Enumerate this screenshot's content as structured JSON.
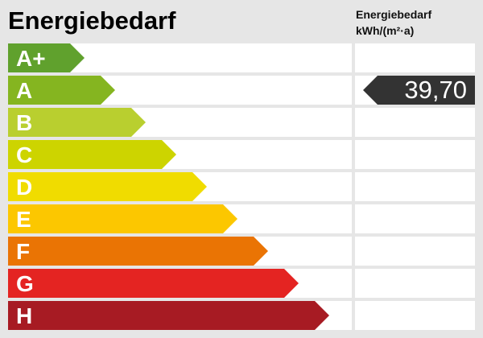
{
  "chart_data": {
    "type": "bar",
    "title": "Energiebedarf",
    "unit_label": [
      "Energiebedarf",
      "kWh/(m²·a)"
    ],
    "categories": [
      "A+",
      "A",
      "B",
      "C",
      "D",
      "E",
      "F",
      "G",
      "H"
    ],
    "colors": [
      "#60a12d",
      "#85b520",
      "#b9cf2f",
      "#cdd400",
      "#f0dc00",
      "#fcc700",
      "#ea7404",
      "#e42422",
      "#a71b23"
    ],
    "value": "39,70",
    "value_class": "A"
  }
}
